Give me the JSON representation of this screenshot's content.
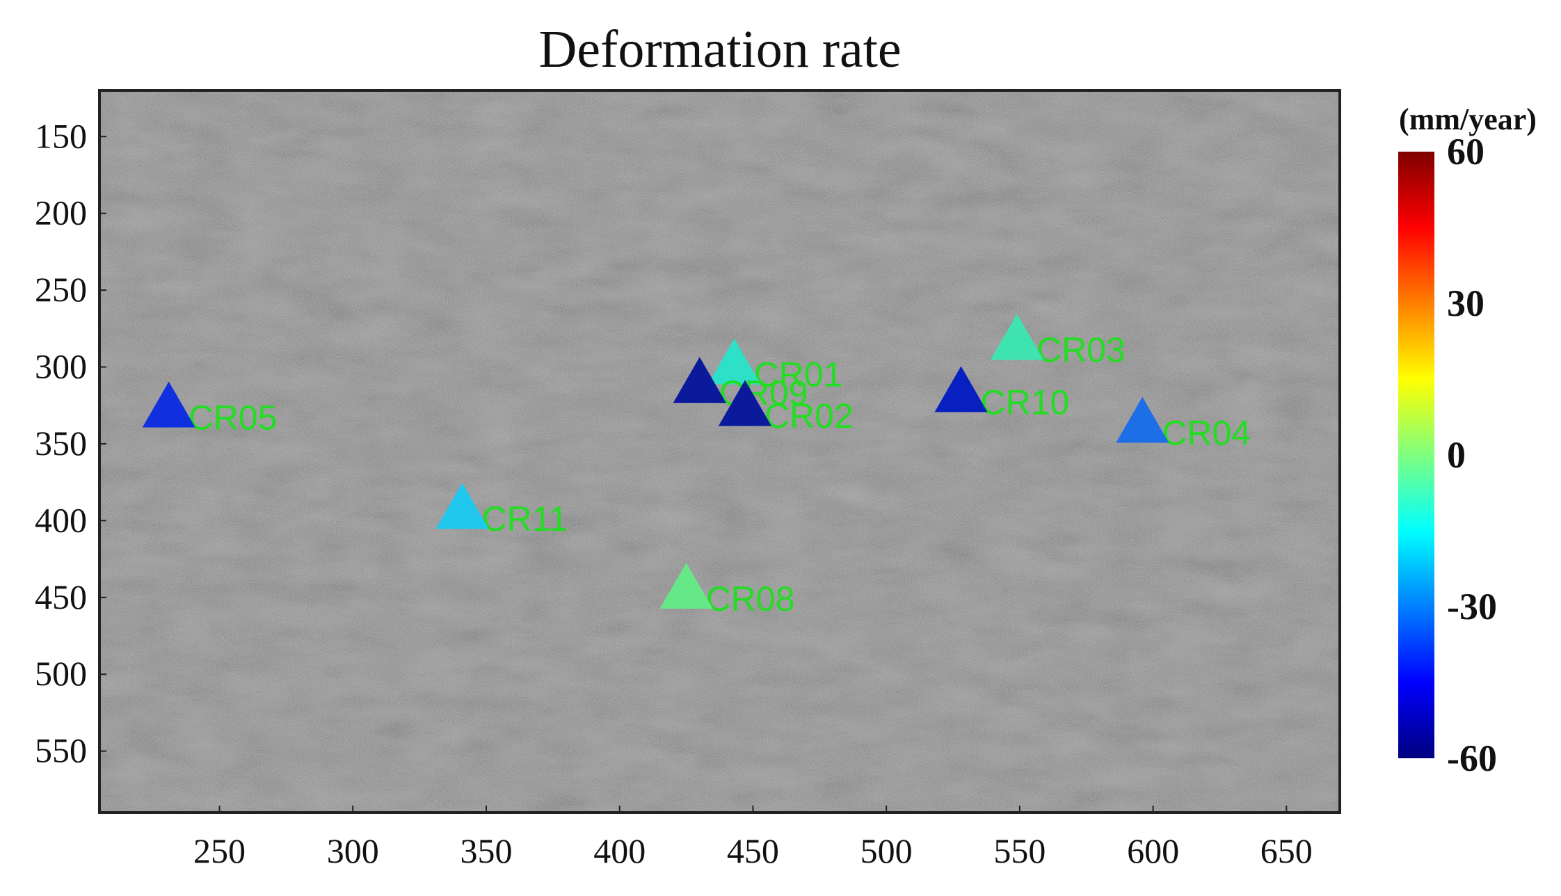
{
  "chart_data": {
    "type": "scatter",
    "title": "Deformation rate",
    "xlabel": "",
    "ylabel": "",
    "xlim": [
      205,
      670
    ],
    "ylim": [
      590,
      120
    ],
    "x_ticks": [
      250,
      300,
      350,
      400,
      450,
      500,
      550,
      600,
      650
    ],
    "y_ticks": [
      150,
      200,
      250,
      300,
      350,
      400,
      450,
      500,
      550
    ],
    "background": "grayscale SAR amplitude image",
    "marker": "triangle",
    "label_color": "#22dd22",
    "points": [
      {
        "label": "CR01",
        "x": 443,
        "y": 300,
        "rate": -20,
        "color": "#2fe0c8"
      },
      {
        "label": "CR09",
        "x": 430,
        "y": 312,
        "rate": -58,
        "color": "#0a1a9a"
      },
      {
        "label": "CR02",
        "x": 447,
        "y": 327,
        "rate": -58,
        "color": "#0a1a9a"
      },
      {
        "label": "CR03",
        "x": 549,
        "y": 284,
        "rate": -15,
        "color": "#3ee3b0"
      },
      {
        "label": "CR10",
        "x": 528,
        "y": 318,
        "rate": -55,
        "color": "#0820c0"
      },
      {
        "label": "CR04",
        "x": 596,
        "y": 338,
        "rate": -40,
        "color": "#1e6ee8"
      },
      {
        "label": "CR05",
        "x": 231,
        "y": 328,
        "rate": -50,
        "color": "#1030e0"
      },
      {
        "label": "CR11",
        "x": 341,
        "y": 394,
        "rate": -28,
        "color": "#20c8ee"
      },
      {
        "label": "CR08",
        "x": 425,
        "y": 446,
        "rate": -5,
        "color": "#66e888"
      }
    ],
    "colorbar": {
      "label": "(mm/year)",
      "min": -60,
      "max": 60,
      "ticks": [
        60,
        30,
        0,
        -30,
        -60
      ],
      "colormap": "jet",
      "stops": [
        "#00007f",
        "#0000ff",
        "#007fff",
        "#00ffff",
        "#7fff7f",
        "#ffff00",
        "#ff7f00",
        "#ff0000",
        "#7f0000"
      ]
    }
  }
}
